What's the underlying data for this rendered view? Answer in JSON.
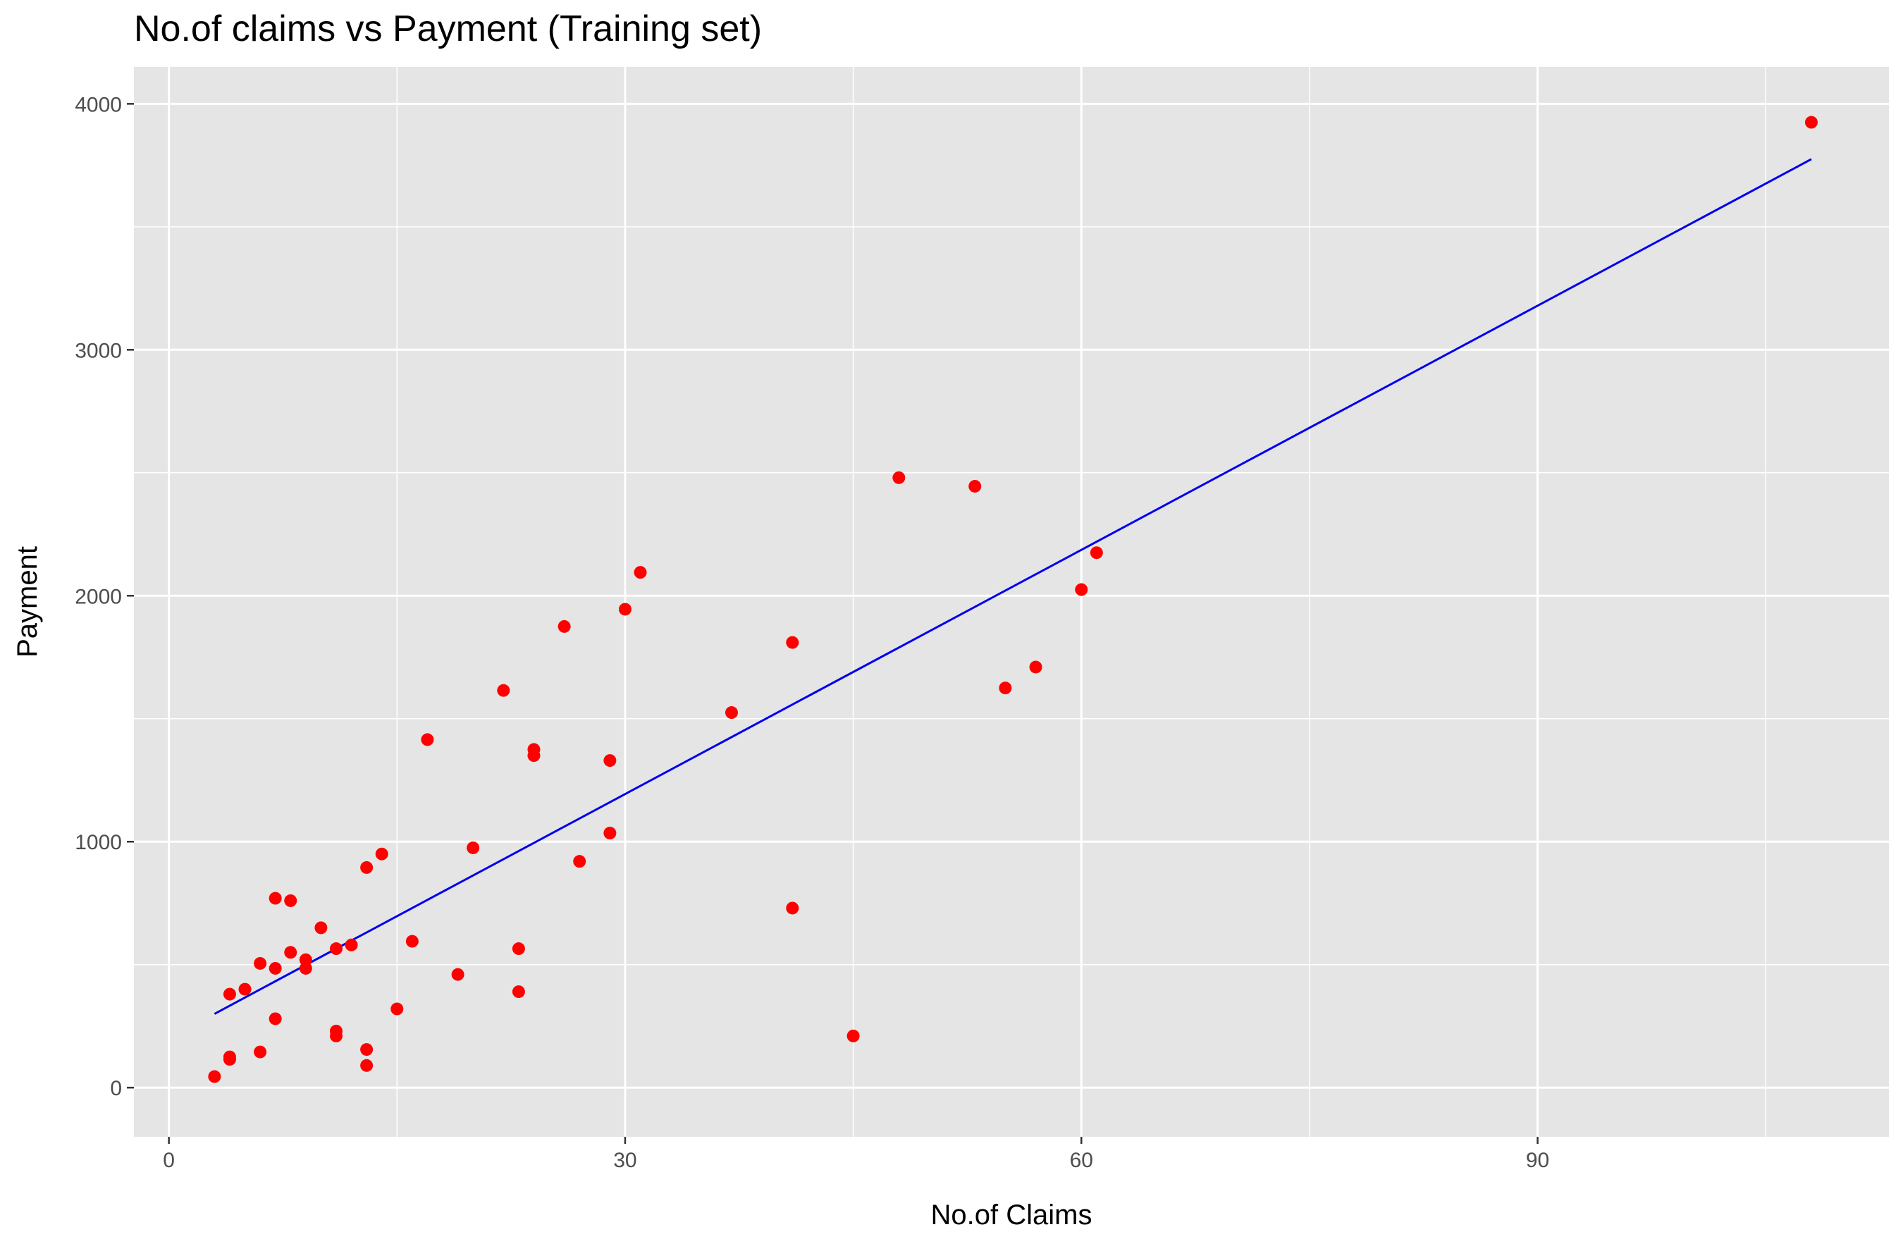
{
  "chart_data": {
    "type": "scatter",
    "title": "No.of claims vs Payment (Training set)",
    "xlabel": "No.of Claims",
    "ylabel": "Payment",
    "xlim": [
      -2.3,
      113.1
    ],
    "ylim": [
      -200,
      4150
    ],
    "x_ticks": [
      0,
      30,
      60,
      90
    ],
    "y_ticks": [
      0,
      1000,
      2000,
      3000,
      4000
    ],
    "grid": true,
    "legend": "none",
    "colors": {
      "panel_background": "#e5e5e5",
      "grid": "#ffffff",
      "points": "#ff0000",
      "fit_line": "#0000ee"
    },
    "series": [
      {
        "kind": "points",
        "x": [
          108,
          48,
          53,
          61,
          60,
          57,
          55,
          41,
          41,
          45,
          37,
          31,
          30,
          29,
          29,
          27,
          26,
          24,
          24,
          23,
          23,
          22,
          20,
          19,
          17,
          16,
          15,
          14,
          13,
          13,
          13,
          12,
          11,
          11,
          11,
          10,
          9,
          9,
          8,
          8,
          7,
          7,
          7,
          6,
          6,
          5,
          4,
          4,
          4,
          3
        ],
        "y": [
          3925,
          2480,
          2445,
          2175,
          2025,
          1710,
          1625,
          1810,
          730,
          210,
          1525,
          2095,
          1945,
          1330,
          1035,
          920,
          1875,
          1375,
          1350,
          565,
          390,
          1615,
          975,
          460,
          1415,
          595,
          320,
          950,
          895,
          155,
          90,
          580,
          565,
          230,
          210,
          650,
          520,
          485,
          550,
          760,
          770,
          485,
          280,
          505,
          145,
          400,
          380,
          125,
          115,
          45
        ]
      },
      {
        "kind": "line",
        "x": [
          3,
          108
        ],
        "y": [
          300,
          3775
        ]
      }
    ]
  }
}
